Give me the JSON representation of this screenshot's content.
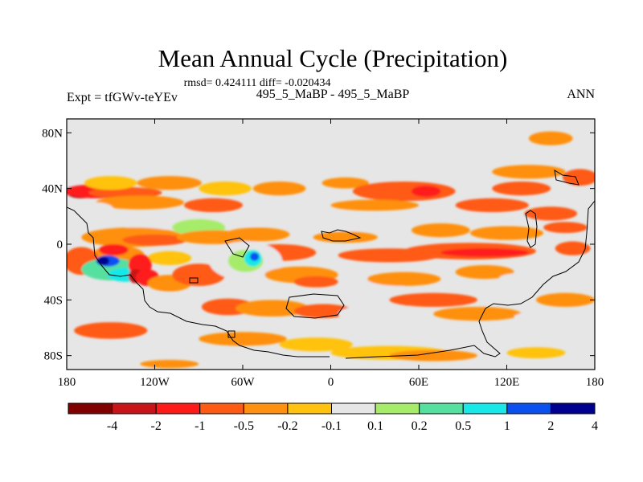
{
  "chart_data": {
    "type": "heatmap",
    "title": "Mean Annual Cycle (Precipitation)",
    "stats_line": "rmsd= 0.424111 diff= -0.020434",
    "case_line": "495_5_MaBP - 495_5_MaBP",
    "left_label": "Expt = tfGWv-teYEv",
    "right_label": "ANN",
    "xaxis": {
      "range": [
        -180,
        180
      ],
      "ticks": [
        -180,
        -120,
        -60,
        0,
        60,
        120,
        180
      ],
      "tick_labels": [
        "180",
        "120W",
        "60W",
        "0",
        "60E",
        "120E",
        "180"
      ]
    },
    "yaxis": {
      "range": [
        -90,
        90
      ],
      "ticks": [
        80,
        40,
        0,
        -40,
        -80
      ],
      "tick_labels": [
        "80N",
        "40N",
        "0",
        "40S",
        "80S"
      ]
    },
    "colorbar": {
      "labels": [
        "-4",
        "-2",
        "-1",
        "-0.5",
        "-0.2",
        "-0.1",
        "0.1",
        "0.2",
        "0.5",
        "1",
        "2",
        "4"
      ],
      "colors": [
        "#800000",
        "#c81418",
        "#ff1a1a",
        "#ff5a14",
        "#ff9010",
        "#ffc20e",
        "#e6e6e6",
        "#a6ec6a",
        "#55e0a0",
        "#18e8e8",
        "#0a50f0",
        "#000090"
      ]
    },
    "blobs": [
      {
        "lon": -170,
        "lat": 37,
        "rx": 10,
        "ry": 4,
        "level": 0
      },
      {
        "lon": -160,
        "lat": 38,
        "rx": 22,
        "ry": 5,
        "level": 2
      },
      {
        "lon": -140,
        "lat": 37,
        "rx": 25,
        "ry": 4,
        "level": 3
      },
      {
        "lon": -150,
        "lat": 44,
        "rx": 18,
        "ry": 5,
        "level": 5
      },
      {
        "lon": -110,
        "lat": 44,
        "rx": 22,
        "ry": 5,
        "level": 4
      },
      {
        "lon": -72,
        "lat": 40,
        "rx": 18,
        "ry": 5,
        "level": 5
      },
      {
        "lon": -35,
        "lat": 40,
        "rx": 18,
        "ry": 5,
        "level": 4
      },
      {
        "lon": 10,
        "lat": 44,
        "rx": 16,
        "ry": 4,
        "level": 4
      },
      {
        "lon": 50,
        "lat": 38,
        "rx": 35,
        "ry": 7,
        "level": 3
      },
      {
        "lon": 65,
        "lat": 38,
        "rx": 10,
        "ry": 4,
        "level": 2
      },
      {
        "lon": 130,
        "lat": 40,
        "rx": 20,
        "ry": 5,
        "level": 3
      },
      {
        "lon": 135,
        "lat": 52,
        "rx": 25,
        "ry": 5,
        "level": 4
      },
      {
        "lon": 170,
        "lat": 48,
        "rx": 12,
        "ry": 6,
        "level": 3
      },
      {
        "lon": 150,
        "lat": 76,
        "rx": 15,
        "ry": 5,
        "level": 4
      },
      {
        "lon": -150,
        "lat": 68,
        "rx": 25,
        "ry": 5,
        "level": 6
      },
      {
        "lon": -70,
        "lat": 62,
        "rx": 20,
        "ry": 4,
        "level": 6
      },
      {
        "lon": 60,
        "lat": 64,
        "rx": 40,
        "ry": 4,
        "level": 6
      },
      {
        "lon": -110,
        "lat": 85,
        "rx": 18,
        "ry": 3,
        "level": 6
      },
      {
        "lon": -130,
        "lat": 30,
        "rx": 30,
        "ry": 5,
        "level": 4
      },
      {
        "lon": -80,
        "lat": 28,
        "rx": 20,
        "ry": 5,
        "level": 3
      },
      {
        "lon": 30,
        "lat": 28,
        "rx": 30,
        "ry": 4,
        "level": 4
      },
      {
        "lon": 110,
        "lat": 28,
        "rx": 25,
        "ry": 5,
        "level": 3
      },
      {
        "lon": 150,
        "lat": 22,
        "rx": 18,
        "ry": 5,
        "level": 3
      },
      {
        "lon": -160,
        "lat": 25,
        "rx": 12,
        "ry": 5,
        "level": 6
      },
      {
        "lon": -125,
        "lat": 15,
        "rx": 15,
        "ry": 7,
        "level": 6
      },
      {
        "lon": -90,
        "lat": 12,
        "rx": 18,
        "ry": 6,
        "level": 7
      },
      {
        "lon": -55,
        "lat": 18,
        "rx": 20,
        "ry": 5,
        "level": 6
      },
      {
        "lon": 15,
        "lat": 15,
        "rx": 30,
        "ry": 5,
        "level": 6
      },
      {
        "lon": -135,
        "lat": 5,
        "rx": 35,
        "ry": 7,
        "level": 4
      },
      {
        "lon": -120,
        "lat": 3,
        "rx": 22,
        "ry": 4,
        "level": 3
      },
      {
        "lon": -80,
        "lat": 5,
        "rx": 25,
        "ry": 5,
        "level": 4
      },
      {
        "lon": -50,
        "lat": 7,
        "rx": 22,
        "ry": 5,
        "level": 4
      },
      {
        "lon": 10,
        "lat": 5,
        "rx": 22,
        "ry": 4,
        "level": 4
      },
      {
        "lon": 75,
        "lat": 10,
        "rx": 20,
        "ry": 5,
        "level": 4
      },
      {
        "lon": 120,
        "lat": 8,
        "rx": 25,
        "ry": 5,
        "level": 4
      },
      {
        "lon": 160,
        "lat": 12,
        "rx": 15,
        "ry": 4,
        "level": 3
      },
      {
        "lon": -145,
        "lat": -8,
        "rx": 18,
        "ry": 7,
        "level": 4
      },
      {
        "lon": -148,
        "lat": -4,
        "rx": 10,
        "ry": 4,
        "level": 2
      },
      {
        "lon": -110,
        "lat": -10,
        "rx": 15,
        "ry": 5,
        "level": 5
      },
      {
        "lon": -35,
        "lat": -6,
        "rx": 25,
        "ry": 6,
        "level": 3
      },
      {
        "lon": 40,
        "lat": -8,
        "rx": 35,
        "ry": 5,
        "level": 3
      },
      {
        "lon": 95,
        "lat": -5,
        "rx": 45,
        "ry": 6,
        "level": 3
      },
      {
        "lon": 105,
        "lat": -6,
        "rx": 30,
        "ry": 3,
        "level": 2
      },
      {
        "lon": 165,
        "lat": -3,
        "rx": 12,
        "ry": 5,
        "level": 3
      },
      {
        "lon": -170,
        "lat": -12,
        "rx": 12,
        "ry": 10,
        "level": 3
      },
      {
        "lon": -150,
        "lat": -18,
        "rx": 20,
        "ry": 8,
        "level": 8
      },
      {
        "lon": -140,
        "lat": -22,
        "rx": 12,
        "ry": 5,
        "level": 9
      },
      {
        "lon": -152,
        "lat": -12,
        "rx": 8,
        "ry": 4,
        "level": 10
      },
      {
        "lon": -155,
        "lat": -12,
        "rx": 4,
        "ry": 3,
        "level": 11
      },
      {
        "lon": -130,
        "lat": -15,
        "rx": 8,
        "ry": 8,
        "level": 2
      },
      {
        "lon": -133,
        "lat": -23,
        "rx": 5,
        "ry": 5,
        "level": 1
      },
      {
        "lon": -125,
        "lat": -24,
        "rx": 8,
        "ry": 6,
        "level": 2
      },
      {
        "lon": -110,
        "lat": -28,
        "rx": 15,
        "ry": 6,
        "level": 4
      },
      {
        "lon": -90,
        "lat": -22,
        "rx": 18,
        "ry": 8,
        "level": 3
      },
      {
        "lon": -58,
        "lat": -12,
        "rx": 25,
        "ry": 14,
        "level": 6
      },
      {
        "lon": -58,
        "lat": -12,
        "rx": 12,
        "ry": 8,
        "level": 7
      },
      {
        "lon": -53,
        "lat": -10,
        "rx": 6,
        "ry": 6,
        "level": 9
      },
      {
        "lon": -52,
        "lat": -9,
        "rx": 3,
        "ry": 3,
        "level": 10
      },
      {
        "lon": -20,
        "lat": -22,
        "rx": 25,
        "ry": 6,
        "level": 4
      },
      {
        "lon": -10,
        "lat": -27,
        "rx": 15,
        "ry": 4,
        "level": 3
      },
      {
        "lon": 30,
        "lat": -30,
        "rx": 20,
        "ry": 5,
        "level": 6
      },
      {
        "lon": 50,
        "lat": -25,
        "rx": 25,
        "ry": 5,
        "level": 4
      },
      {
        "lon": 70,
        "lat": -40,
        "rx": 30,
        "ry": 5,
        "level": 3
      },
      {
        "lon": 105,
        "lat": -20,
        "rx": 20,
        "ry": 5,
        "level": 4
      },
      {
        "lon": 140,
        "lat": -24,
        "rx": 25,
        "ry": 4,
        "level": 6
      },
      {
        "lon": 160,
        "lat": -40,
        "rx": 20,
        "ry": 5,
        "level": 4
      },
      {
        "lon": -165,
        "lat": -40,
        "rx": 12,
        "ry": 5,
        "level": 6
      },
      {
        "lon": -115,
        "lat": -40,
        "rx": 15,
        "ry": 5,
        "level": 6
      },
      {
        "lon": -70,
        "lat": -45,
        "rx": 18,
        "ry": 6,
        "level": 3
      },
      {
        "lon": -40,
        "lat": -46,
        "rx": 25,
        "ry": 6,
        "level": 4
      },
      {
        "lon": -5,
        "lat": -48,
        "rx": 20,
        "ry": 5,
        "level": 3
      },
      {
        "lon": 20,
        "lat": -50,
        "rx": 15,
        "ry": 5,
        "level": 6
      },
      {
        "lon": 100,
        "lat": -50,
        "rx": 30,
        "ry": 5,
        "level": 4
      },
      {
        "lon": 150,
        "lat": -52,
        "rx": 25,
        "ry": 4,
        "level": 6
      },
      {
        "lon": -150,
        "lat": -62,
        "rx": 25,
        "ry": 6,
        "level": 3
      },
      {
        "lon": -60,
        "lat": -68,
        "rx": 30,
        "ry": 5,
        "level": 4
      },
      {
        "lon": -10,
        "lat": -72,
        "rx": 25,
        "ry": 5,
        "level": 5
      },
      {
        "lon": 60,
        "lat": -65,
        "rx": 30,
        "ry": 5,
        "level": 6
      },
      {
        "lon": 130,
        "lat": -62,
        "rx": 30,
        "ry": 5,
        "level": 6
      },
      {
        "lon": -150,
        "lat": -78,
        "rx": 18,
        "ry": 4,
        "level": 6
      },
      {
        "lon": -30,
        "lat": -83,
        "rx": 25,
        "ry": 4,
        "level": 6
      },
      {
        "lon": 40,
        "lat": -78,
        "rx": 40,
        "ry": 5,
        "level": 5
      },
      {
        "lon": 70,
        "lat": -80,
        "rx": 30,
        "ry": 4,
        "level": 4
      },
      {
        "lon": 140,
        "lat": -78,
        "rx": 20,
        "ry": 4,
        "level": 5
      },
      {
        "lon": -110,
        "lat": -86,
        "rx": 20,
        "ry": 3,
        "level": 4
      }
    ]
  }
}
